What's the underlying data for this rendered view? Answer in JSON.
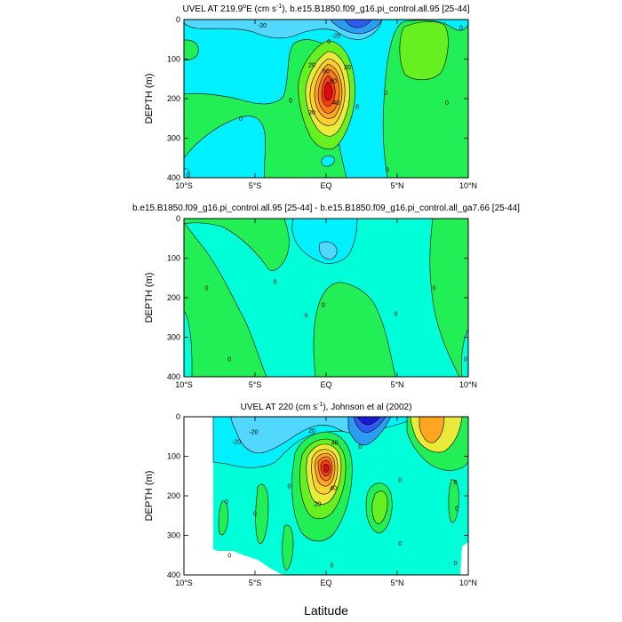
{
  "figure": {
    "xlabel": "Latitude",
    "colors": {
      "c_neg40": "#1a1ad6",
      "c_neg30": "#2f5cf0",
      "c_neg20": "#2c9cf2",
      "c_neg10": "#52d8ff",
      "c_zero_neg": "#00f0ff",
      "c_neg_light": "#00ffd9",
      "c_zero_pos": "#22ee55",
      "c_pos10": "#66f022",
      "c_pos20": "#eaea3a",
      "c_pos30": "#ffd030",
      "c_pos40": "#ffa51f",
      "c_pos50": "#ff7a18",
      "c_pos60": "#ff3a14",
      "c_pos80": "#e00a0a"
    }
  },
  "chart_data": [
    {
      "type": "contour",
      "title": "UVEL AT 219.9°E (cm s⁻¹), b.e15.B1850.f09_g16.pi_control.all.95 [25-44]",
      "title_main": "UVEL AT 219.9",
      "title_sup_deg": "o",
      "title_mid": "E (cm s",
      "title_sup_exp": "-1",
      "title_end": "), b.e15.B1850.f09_g16.pi_control.all.95 [25-44]",
      "ylabel": "DEPTH (m)",
      "xlim": [
        -10,
        10
      ],
      "ylim": [
        400,
        0
      ],
      "xticks": [
        "10°S",
        "5°S",
        "EQ",
        "5°N",
        "10°N"
      ],
      "yticks": [
        "0",
        "100",
        "200",
        "300",
        "400"
      ],
      "contour_labels": [
        {
          "text": "-20",
          "lat": -4.5,
          "depth": 15
        },
        {
          "text": "0",
          "lat": 0.2,
          "depth": 55
        },
        {
          "text": "20",
          "lat": -1.0,
          "depth": 115
        },
        {
          "text": "20",
          "lat": 1.5,
          "depth": 120
        },
        {
          "text": "60",
          "lat": 0.0,
          "depth": 130
        },
        {
          "text": "80",
          "lat": 0.5,
          "depth": 155
        },
        {
          "text": "40",
          "lat": 0.7,
          "depth": 210
        },
        {
          "text": "20",
          "lat": -1.0,
          "depth": 235
        },
        {
          "text": "0",
          "lat": -2.5,
          "depth": 205
        },
        {
          "text": "0",
          "lat": 2.2,
          "depth": 220
        },
        {
          "text": "0",
          "lat": 4.2,
          "depth": 185
        },
        {
          "text": "0",
          "lat": -6.0,
          "depth": 250
        },
        {
          "text": "0",
          "lat": 4.3,
          "depth": 380
        },
        {
          "text": "0",
          "lat": 8.5,
          "depth": 210
        },
        {
          "text": "0",
          "lat": 9.5,
          "depth": 20
        },
        {
          "text": "0",
          "lat": -9.7,
          "depth": 393
        },
        {
          "text": "-20",
          "lat": 0.7,
          "depth": 40
        }
      ]
    },
    {
      "type": "contour",
      "title": "b.e15.B1850.f09_g16.pi_control.all.95 [25-44] - b.e15.B1850.f09_g16.pi_control.all_ga7.66 [25-44]",
      "ylabel": "DEPTH (m)",
      "xlim": [
        -10,
        10
      ],
      "ylim": [
        400,
        0
      ],
      "xticks": [
        "10°S",
        "5°S",
        "EQ",
        "5°N",
        "10°N"
      ],
      "yticks": [
        "0",
        "100",
        "200",
        "300",
        "400"
      ],
      "contour_labels": [
        {
          "text": "0",
          "lat": -8.4,
          "depth": 175
        },
        {
          "text": "0",
          "lat": -3.6,
          "depth": 160
        },
        {
          "text": "0",
          "lat": -1.4,
          "depth": 245
        },
        {
          "text": "0",
          "lat": -0.2,
          "depth": 218
        },
        {
          "text": "0",
          "lat": 4.9,
          "depth": 240
        },
        {
          "text": "0",
          "lat": 7.6,
          "depth": 175
        },
        {
          "text": "0",
          "lat": -6.8,
          "depth": 355
        },
        {
          "text": "0",
          "lat": 9.8,
          "depth": 355
        }
      ]
    },
    {
      "type": "contour",
      "title": "UVEL AT 220 (cm s⁻¹), Johnson et al (2002)",
      "title_main": "UVEL AT 220 (cm s",
      "title_sup_exp": "-1",
      "title_end": "), Johnson et al (2002)",
      "ylabel": "DEPTH (m)",
      "xlim": [
        -10,
        10
      ],
      "ylim": [
        400,
        0
      ],
      "xticks": [
        "10°S",
        "5°S",
        "EQ",
        "5°N",
        "10°N"
      ],
      "yticks": [
        "0",
        "100",
        "200",
        "300",
        "400"
      ],
      "contour_labels": [
        {
          "text": "-20",
          "lat": -5.1,
          "depth": 38
        },
        {
          "text": "-20",
          "lat": -6.3,
          "depth": 63
        },
        {
          "text": "20",
          "lat": -1.0,
          "depth": 35
        },
        {
          "text": "40",
          "lat": 0.6,
          "depth": 65
        },
        {
          "text": "0",
          "lat": 2.4,
          "depth": 75
        },
        {
          "text": "0",
          "lat": -2.6,
          "depth": 175
        },
        {
          "text": "0",
          "lat": -7.0,
          "depth": 215
        },
        {
          "text": "0",
          "lat": -5.0,
          "depth": 245
        },
        {
          "text": "20",
          "lat": -0.6,
          "depth": 220
        },
        {
          "text": "40",
          "lat": 0.5,
          "depth": 180
        },
        {
          "text": "0",
          "lat": 5.2,
          "depth": 160
        },
        {
          "text": "0",
          "lat": 5.2,
          "depth": 320
        },
        {
          "text": "0",
          "lat": 9.1,
          "depth": 165
        },
        {
          "text": "0",
          "lat": 9.2,
          "depth": 232
        },
        {
          "text": "0",
          "lat": -6.8,
          "depth": 350
        },
        {
          "text": "0",
          "lat": 0.4,
          "depth": 375
        },
        {
          "text": "0",
          "lat": 9.1,
          "depth": 370
        }
      ]
    }
  ]
}
